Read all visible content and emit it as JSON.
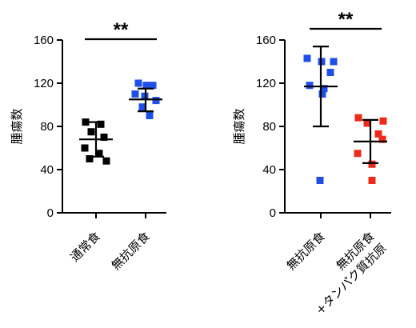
{
  "chart_data": [
    {
      "type": "scatter",
      "ylabel": "腫瘍数",
      "ylim": [
        0,
        160
      ],
      "yticks": [
        0,
        40,
        80,
        120,
        160
      ],
      "categories": [
        "通常食",
        "無抗原食"
      ],
      "significance": "**",
      "series": [
        {
          "color": "#000000",
          "values": [
            84,
            82,
            75,
            70,
            60,
            55,
            50,
            48
          ],
          "mean": 68,
          "sd_low": 52,
          "sd_high": 84
        },
        {
          "color": "#1f4fe8",
          "values": [
            120,
            118,
            118,
            110,
            108,
            104,
            98,
            90
          ],
          "mean": 105,
          "sd_low": 94,
          "sd_high": 115
        }
      ]
    },
    {
      "type": "scatter",
      "ylabel": "腫瘍数",
      "ylim": [
        0,
        160
      ],
      "yticks": [
        0,
        40,
        80,
        120,
        160
      ],
      "categories": [
        "無抗原食",
        "無抗原食\n+タンパク質抗原"
      ],
      "significance": "**",
      "series": [
        {
          "color": "#1f4fe8",
          "values": [
            143,
            140,
            140,
            130,
            118,
            115,
            110,
            30
          ],
          "mean": 117,
          "sd_low": 80,
          "sd_high": 154
        },
        {
          "color": "#ee2a1a",
          "values": [
            88,
            85,
            83,
            73,
            68,
            55,
            45,
            30
          ],
          "mean": 66,
          "sd_low": 46,
          "sd_high": 86
        }
      ]
    }
  ]
}
